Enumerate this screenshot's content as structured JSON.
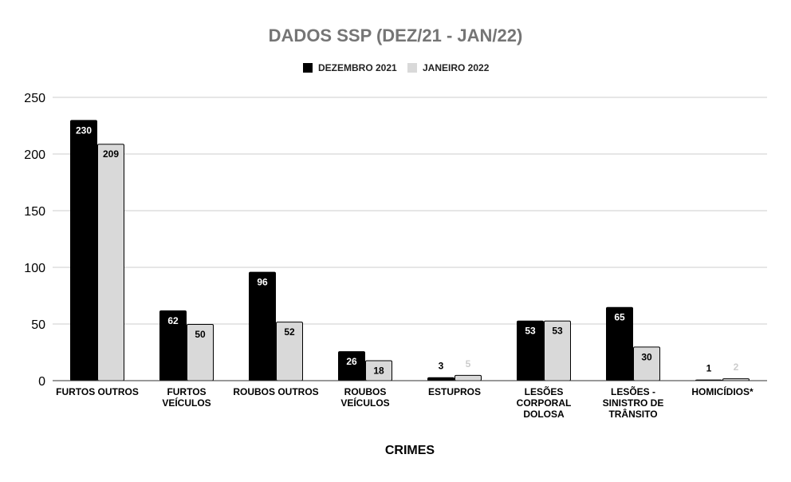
{
  "chart_data": {
    "type": "bar",
    "title": "DADOS SSP (DEZ/21 - JAN/22)",
    "xlabel": "CRIMES",
    "ylabel": "",
    "ylim": [
      0,
      250
    ],
    "yticks": [
      0,
      50,
      100,
      150,
      200,
      250
    ],
    "grid": true,
    "legend_position": "top-center",
    "categories": [
      [
        "FURTOS OUTROS"
      ],
      [
        "FURTOS",
        "VEÍCULOS"
      ],
      [
        "ROUBOS OUTROS"
      ],
      [
        "ROUBOS",
        "VEÍCULOS"
      ],
      [
        "ESTUPROS"
      ],
      [
        "LESÕES",
        "CORPORAL",
        "DOLOSA"
      ],
      [
        "LESÕES -",
        "SINISTRO DE",
        "TRÂNSITO"
      ],
      [
        "HOMICÍDIOS*"
      ]
    ],
    "series": [
      {
        "name": "DEZEMBRO 2021",
        "color": "#000000",
        "label_color": "#ffffff",
        "values": [
          230,
          62,
          96,
          26,
          3,
          53,
          65,
          1
        ]
      },
      {
        "name": "JANEIRO 2022",
        "color": "#d9d9d9",
        "label_color": "#000000",
        "values": [
          209,
          50,
          52,
          18,
          5,
          53,
          30,
          2
        ]
      }
    ]
  }
}
